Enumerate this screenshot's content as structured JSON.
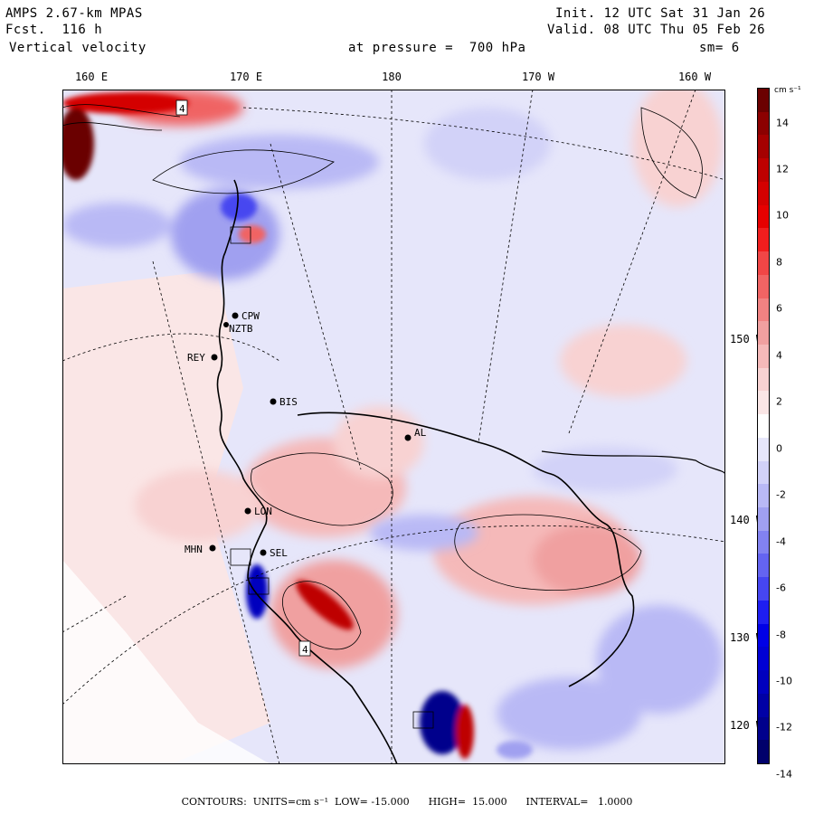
{
  "header": {
    "model": "AMPS 2.67-km MPAS",
    "forecast": "Fcst.  116 h",
    "variable": "Vertical velocity",
    "init": "Init. 12 UTC Sat 31 Jan 26",
    "valid": "Valid. 08 UTC Thu 05 Feb 26",
    "pressure": "at pressure =  700 hPa",
    "smoothing": "sm= 6"
  },
  "axes": {
    "longitudes": [
      "160 E",
      "170 E",
      "180",
      "170 W",
      "160 W"
    ],
    "latitudes": [
      "150 W",
      "140 W",
      "130 W",
      "120 W"
    ]
  },
  "stations": [
    {
      "code": "CPW"
    },
    {
      "code": "NZTB"
    },
    {
      "code": "REY"
    },
    {
      "code": "BIS"
    },
    {
      "code": "AL"
    },
    {
      "code": "LON"
    },
    {
      "code": "MHN"
    },
    {
      "code": "SEL"
    }
  ],
  "map_boxes": [
    "4",
    "4"
  ],
  "colorbar": {
    "units": "cm s⁻¹",
    "labels": [
      "14",
      "12",
      "10",
      "8",
      "6",
      "4",
      "2",
      "0",
      "-2",
      "-4",
      "-6",
      "-8",
      "-10",
      "-12",
      "-14"
    ],
    "colors": [
      "#6b0000",
      "#8c0000",
      "#a50000",
      "#be0000",
      "#d40000",
      "#e60000",
      "#f01e1e",
      "#f04646",
      "#f06464",
      "#f08282",
      "#f0a0a0",
      "#f5b9b9",
      "#f8d2d2",
      "#fae6e6",
      "#ffffff",
      "#e6e6fa",
      "#d2d2f8",
      "#b9b9f5",
      "#a0a0f0",
      "#8282f0",
      "#6464f0",
      "#4646f0",
      "#1e1ef0",
      "#0000e6",
      "#0000d4",
      "#0000be",
      "#0000a5",
      "#00008c",
      "#00006b"
    ]
  },
  "footer": "CONTOURS:  UNITS=cm s⁻¹  LOW= -15.000      HIGH=  15.000      INTERVAL=   1.0000",
  "colors": {
    "positive": "#f0a0a0",
    "negative": "#a0a0f0",
    "neutral": "#e6e6fa"
  }
}
